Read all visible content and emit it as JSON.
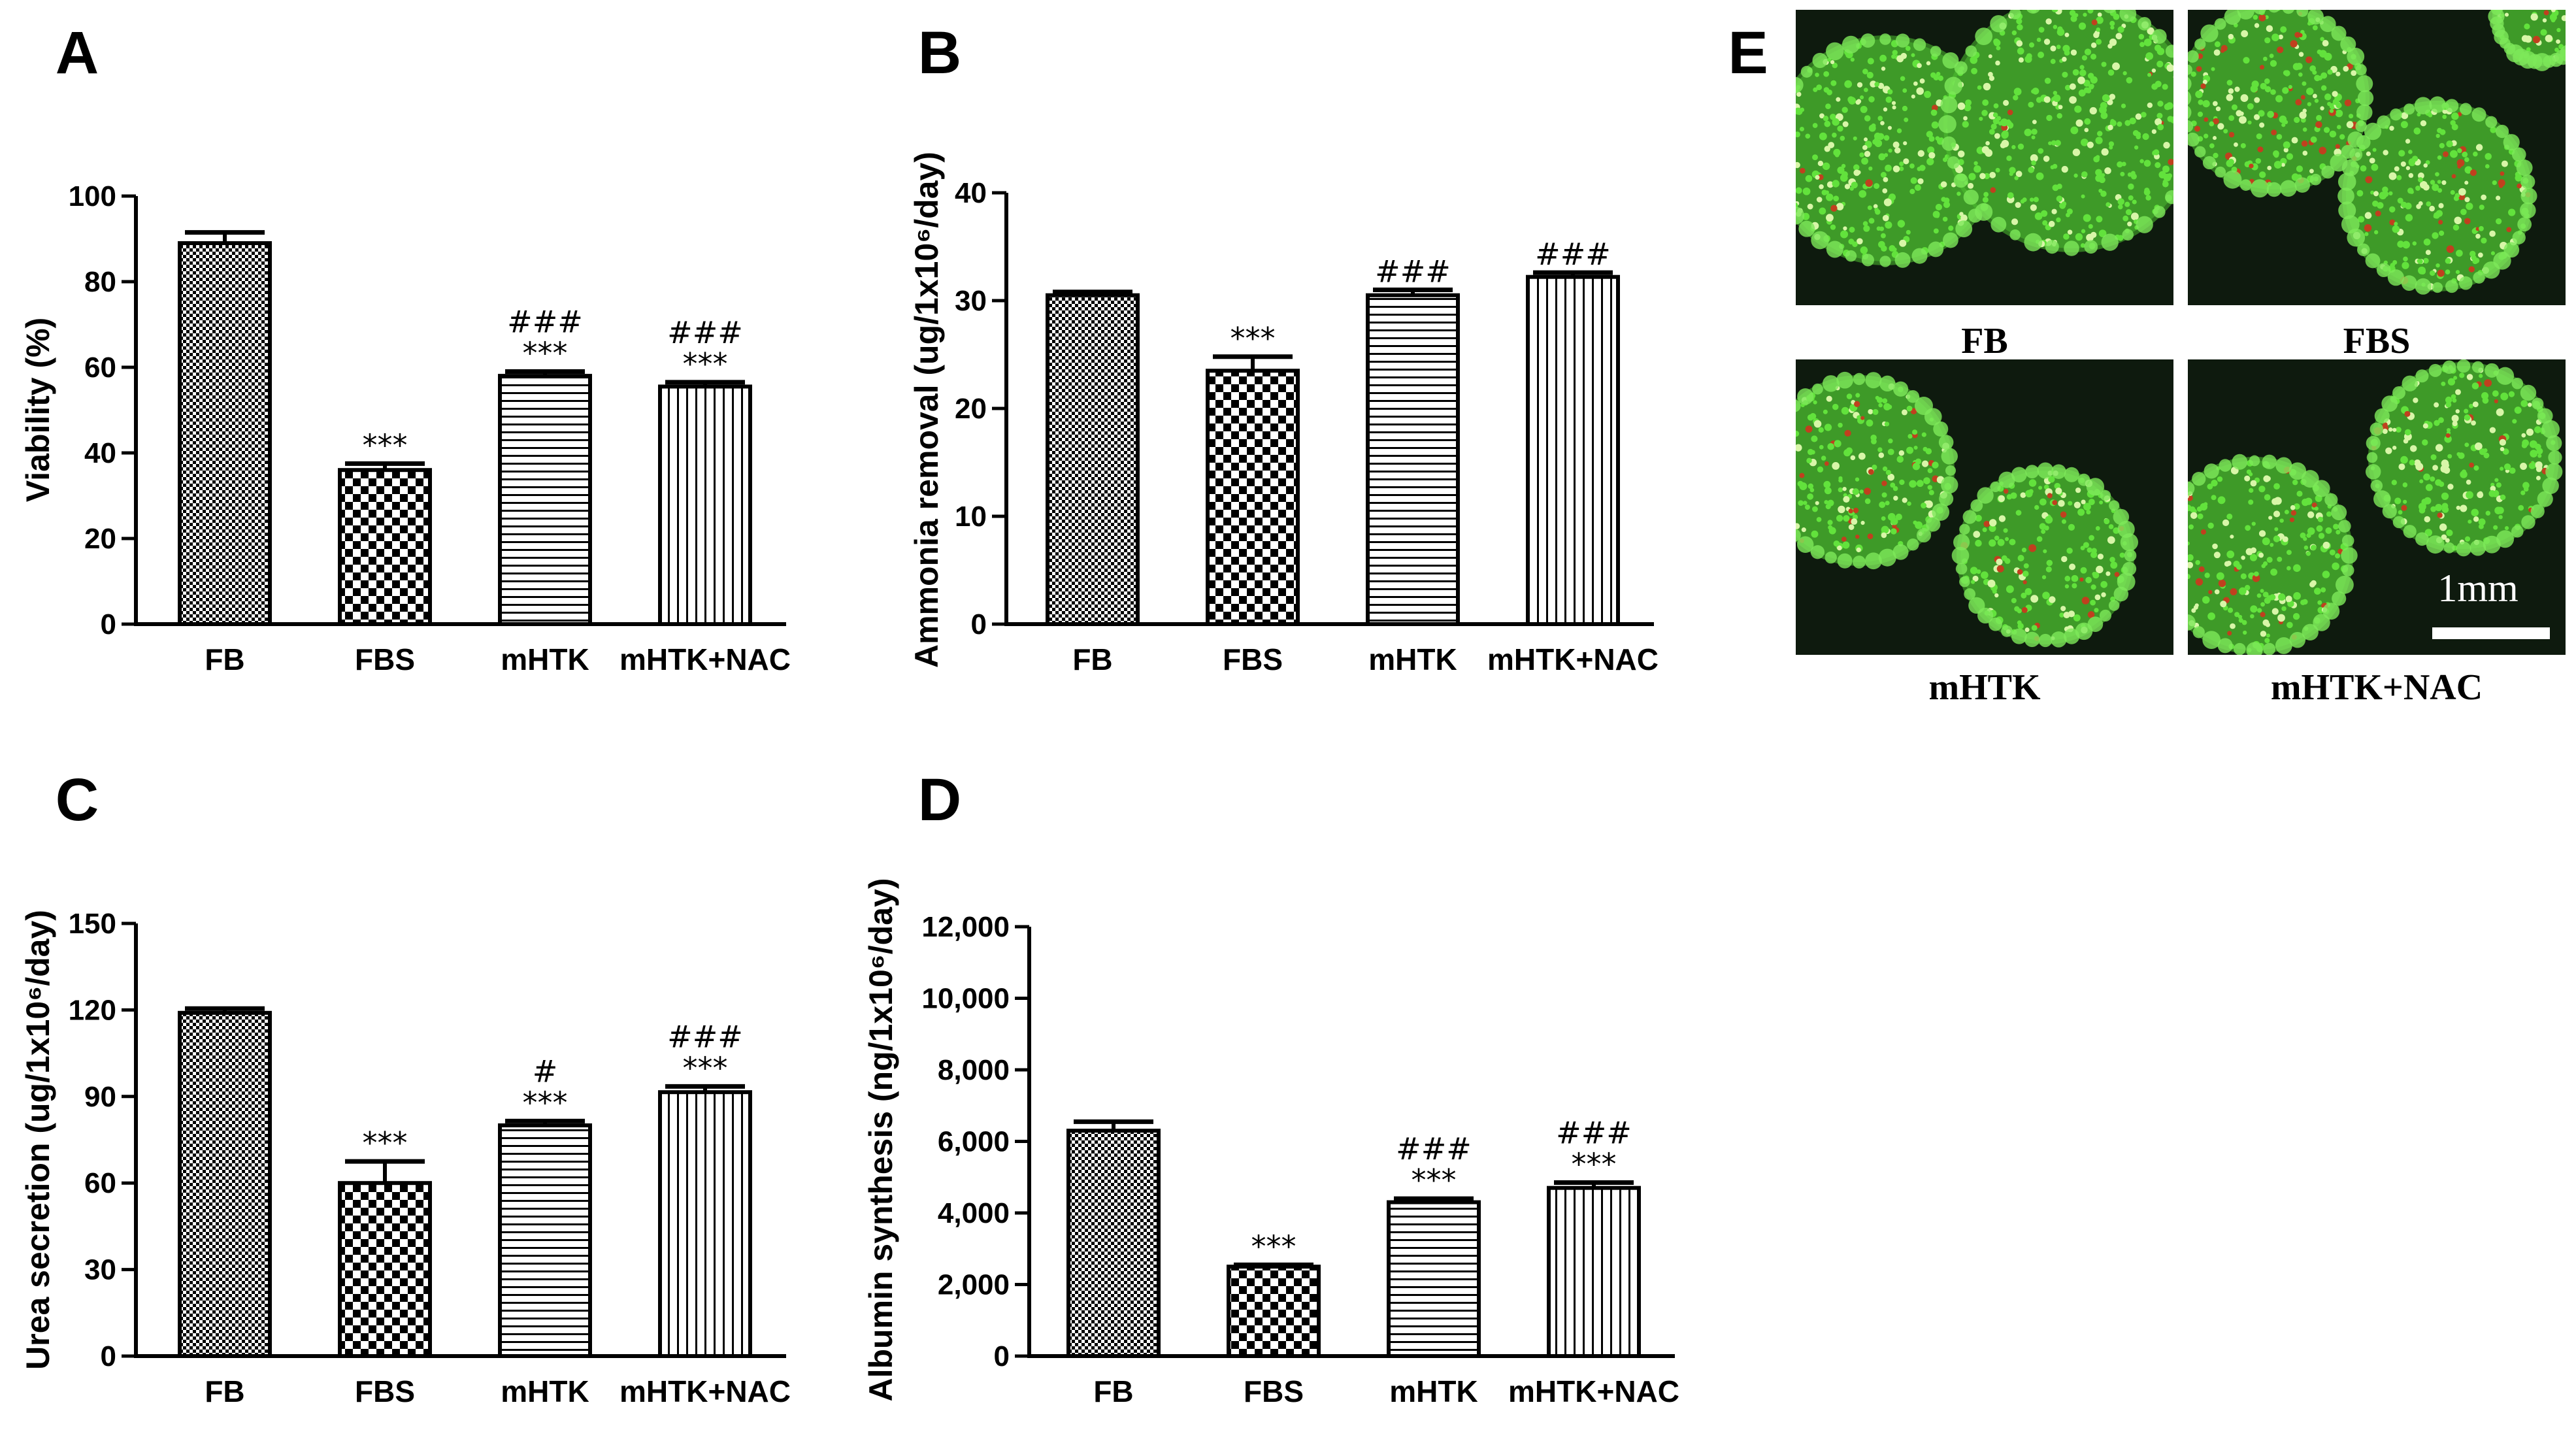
{
  "chart_data": [
    {
      "panel": "A",
      "type": "bar",
      "categories": [
        "FB",
        "FBS",
        "mHTK",
        "mHTK+NAC"
      ],
      "values": [
        89,
        36,
        58,
        55.5
      ],
      "errors": [
        2.5,
        1.5,
        1,
        1
      ],
      "significance": [
        [],
        [
          "***"
        ],
        [
          "###",
          "***"
        ],
        [
          "###",
          "***"
        ]
      ],
      "ylabel": "Viability (%)",
      "ylim": [
        0,
        100
      ],
      "yticks": [
        "0",
        "20",
        "40",
        "60",
        "80",
        "100"
      ],
      "ytick_values": [
        0,
        20,
        40,
        60,
        80,
        100
      ]
    },
    {
      "panel": "B",
      "type": "bar",
      "categories": [
        "FB",
        "FBS",
        "mHTK",
        "mHTK+NAC"
      ],
      "values": [
        30.5,
        23.5,
        30.5,
        32.2
      ],
      "errors": [
        0.3,
        1.3,
        0.5,
        0.4
      ],
      "significance": [
        [],
        [
          "***"
        ],
        [
          "###"
        ],
        [
          "###"
        ]
      ],
      "ylabel": "Ammonia removal (ug/1x10⁶/day)",
      "ylim": [
        0,
        40
      ],
      "yticks": [
        "0",
        "10",
        "20",
        "30",
        "40"
      ],
      "ytick_values": [
        0,
        10,
        20,
        30,
        40
      ]
    },
    {
      "panel": "C",
      "type": "bar",
      "categories": [
        "FB",
        "FBS",
        "mHTK",
        "mHTK+NAC"
      ],
      "values": [
        119,
        60,
        80,
        91.5
      ],
      "errors": [
        1.5,
        7.5,
        1.5,
        2
      ],
      "significance": [
        [],
        [
          "***"
        ],
        [
          "#",
          "***"
        ],
        [
          "###",
          "***"
        ]
      ],
      "ylabel": "Urea secretion (ug/1x10⁶/day)",
      "ylim": [
        0,
        150
      ],
      "yticks": [
        "0",
        "30",
        "60",
        "90",
        "120",
        "150"
      ],
      "ytick_values": [
        0,
        30,
        60,
        90,
        120,
        150
      ]
    },
    {
      "panel": "D",
      "type": "bar",
      "categories": [
        "FB",
        "FBS",
        "mHTK",
        "mHTK+NAC"
      ],
      "values": [
        6300,
        2500,
        4300,
        4700
      ],
      "errors": [
        250,
        50,
        100,
        150
      ],
      "significance": [
        [],
        [
          "***"
        ],
        [
          "###",
          "***"
        ],
        [
          "###",
          "***"
        ]
      ],
      "ylabel": "Albumin synthesis (ng/1x10⁶/day)",
      "ylim": [
        0,
        12000
      ],
      "yticks": [
        "0",
        "2,000",
        "4,000",
        "6,000",
        "8,000",
        "10,000",
        "12,000"
      ],
      "ytick_values": [
        0,
        2000,
        4000,
        6000,
        8000,
        10000,
        12000
      ]
    }
  ],
  "micrographs": {
    "panel": "E",
    "labels": [
      "FB",
      "FBS",
      "mHTK",
      "mHTK+NAC"
    ],
    "scale_bar": "1mm",
    "colors": {
      "background": "#0e1a0e",
      "live": "#62e23c",
      "dead": "#c0401e"
    }
  }
}
